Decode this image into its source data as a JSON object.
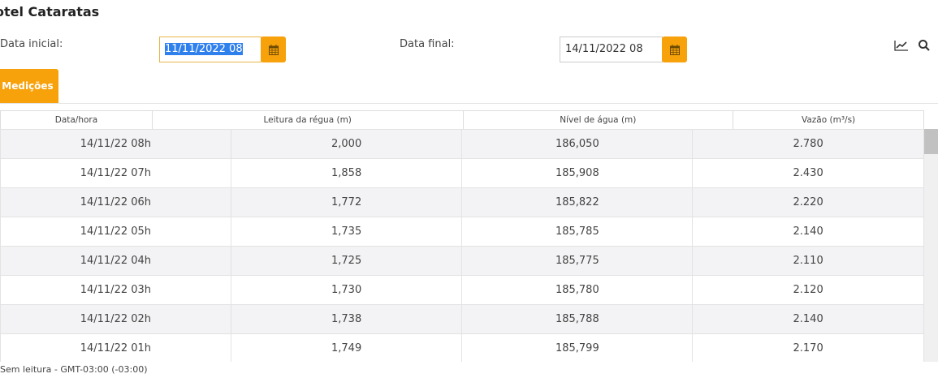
{
  "header": {
    "title": "otel Cataratas"
  },
  "filters": {
    "start_label": "Data inicial:",
    "start_value": "11/11/2022 08",
    "end_label": "Data final:",
    "end_value": "14/11/2022 08"
  },
  "icons": {
    "calendar": "calendar-icon",
    "chart": "line-chart-icon",
    "search": "search-icon"
  },
  "tabs": [
    {
      "label": "Medições"
    }
  ],
  "table": {
    "columns": [
      "Data/hora",
      "Leitura da régua (m)",
      "Nível de água (m)",
      "Vazão (m³/s)"
    ],
    "rows": [
      [
        "14/11/22 08h",
        "2,000",
        "186,050",
        "2.780"
      ],
      [
        "14/11/22 07h",
        "1,858",
        "185,908",
        "2.430"
      ],
      [
        "14/11/22 06h",
        "1,772",
        "185,822",
        "2.220"
      ],
      [
        "14/11/22 05h",
        "1,735",
        "185,785",
        "2.140"
      ],
      [
        "14/11/22 04h",
        "1,725",
        "185,775",
        "2.110"
      ],
      [
        "14/11/22 03h",
        "1,730",
        "185,780",
        "2.120"
      ],
      [
        "14/11/22 02h",
        "1,738",
        "185,788",
        "2.140"
      ],
      [
        "14/11/22 01h",
        "1,749",
        "185,799",
        "2.170"
      ]
    ]
  },
  "footer": {
    "legend": "Sem leitura - GMT-03:00 (-03:00)"
  },
  "colors": {
    "accent": "#f7a10b",
    "selection": "#2f80ed"
  }
}
